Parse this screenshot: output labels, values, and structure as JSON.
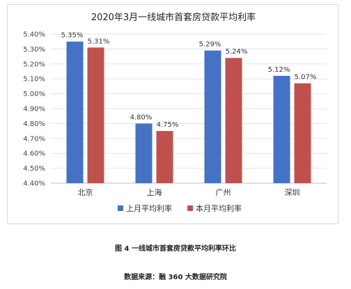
{
  "chart_data": {
    "type": "bar",
    "title": "2020年3月一线城市首套房贷款平均利率",
    "categories": [
      "北京",
      "上海",
      "广州",
      "深圳"
    ],
    "series": [
      {
        "name": "上月平均利率",
        "color": "#4472C4",
        "values": [
          5.35,
          4.8,
          5.29,
          5.12
        ],
        "labels": [
          "5.35%",
          "4.80%",
          "5.29%",
          "5.12%"
        ]
      },
      {
        "name": "本月平均利率",
        "color": "#C0504D",
        "values": [
          5.31,
          4.75,
          5.24,
          5.07
        ],
        "labels": [
          "5.31%",
          "4.75%",
          "5.24%",
          "5.07%"
        ]
      }
    ],
    "ylim": [
      4.4,
      5.4
    ],
    "yticks": [
      "4.40%",
      "4.50%",
      "4.60%",
      "4.70%",
      "4.80%",
      "4.90%",
      "5.00%",
      "5.10%",
      "5.20%",
      "5.30%",
      "5.40%"
    ],
    "grid": true,
    "legend_position": "bottom"
  },
  "figure_caption": "图 4  一线城市首套房贷款平均利率环比",
  "source_caption": "数据来源：融 360 大数据研究院"
}
